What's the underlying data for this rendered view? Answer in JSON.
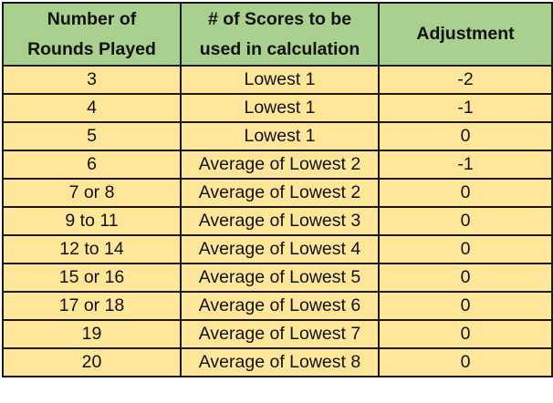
{
  "table": {
    "headers": {
      "rounds": [
        "Number of",
        "Rounds Played"
      ],
      "scores": [
        "# of Scores to be",
        "used in calculation"
      ],
      "adjustment": "Adjustment"
    },
    "rows": [
      {
        "rounds": "3",
        "scores": "Lowest 1",
        "adjustment": "-2"
      },
      {
        "rounds": "4",
        "scores": "Lowest 1",
        "adjustment": "-1"
      },
      {
        "rounds": "5",
        "scores": "Lowest 1",
        "adjustment": "0"
      },
      {
        "rounds": "6",
        "scores": "Average of Lowest 2",
        "adjustment": "-1"
      },
      {
        "rounds": "7 or 8",
        "scores": "Average of Lowest 2",
        "adjustment": "0"
      },
      {
        "rounds": "9 to 11",
        "scores": "Average of Lowest 3",
        "adjustment": "0"
      },
      {
        "rounds": "12 to 14",
        "scores": "Average of Lowest 4",
        "adjustment": "0"
      },
      {
        "rounds": "15 or 16",
        "scores": "Average of Lowest 5",
        "adjustment": "0"
      },
      {
        "rounds": "17 or 18",
        "scores": "Average of Lowest 6",
        "adjustment": "0"
      },
      {
        "rounds": "19",
        "scores": "Average of Lowest 7",
        "adjustment": "0"
      },
      {
        "rounds": "20",
        "scores": "Average of Lowest 8",
        "adjustment": "0"
      }
    ]
  },
  "colors": {
    "header_fill": "#a9d08e",
    "row_fill": "#ffe699",
    "border": "#1a1a1a"
  }
}
